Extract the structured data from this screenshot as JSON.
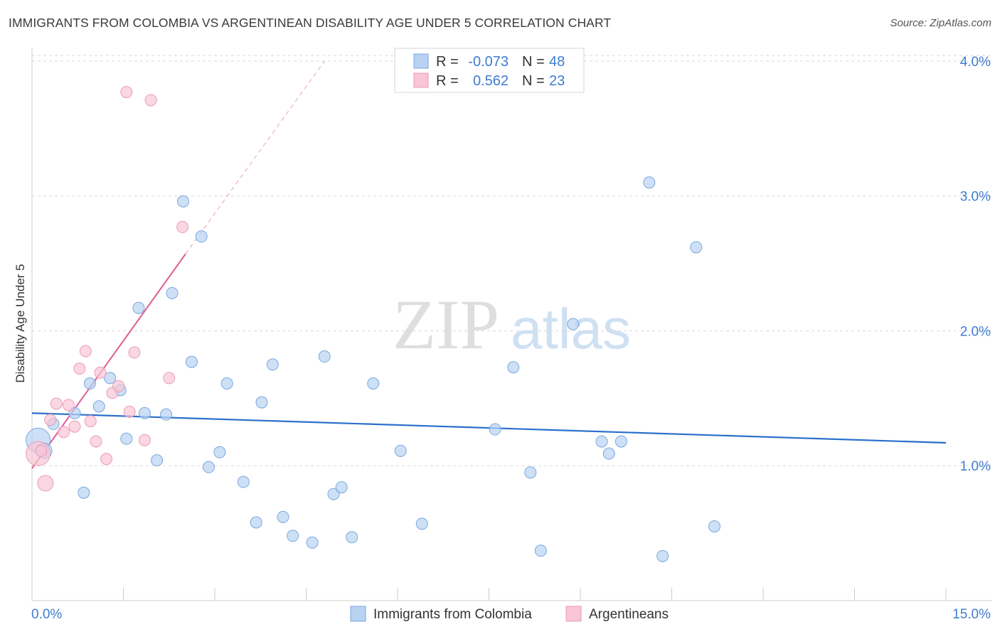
{
  "title": "IMMIGRANTS FROM COLOMBIA VS ARGENTINEAN DISABILITY AGE UNDER 5 CORRELATION CHART",
  "source": "Source: ZipAtlas.com",
  "watermark": {
    "zip": "ZIP",
    "atlas": "atlas"
  },
  "colors": {
    "blue_fill": "#b8d3f2",
    "blue_stroke": "#7aa7dd",
    "blue_line": "#2a6fcc",
    "pink_fill": "#f8c6d6",
    "pink_stroke": "#ec9bb6",
    "pink_line": "#e0689a",
    "tick_text": "#3f7bd0"
  },
  "legend": {
    "rows": [
      {
        "r_label": "R =",
        "r_value": "-0.073",
        "n_label": "N =",
        "n_value": "48"
      },
      {
        "r_label": "R =",
        "r_value": "0.562",
        "n_label": "N =",
        "n_value": "23"
      }
    ]
  },
  "bottom_legend": [
    "Immigrants from Colombia",
    "Argentineans"
  ],
  "chart_data": {
    "type": "scatter",
    "title": "IMMIGRANTS FROM COLOMBIA VS ARGENTINEAN DISABILITY AGE UNDER 5 CORRELATION CHART",
    "xlabel": "",
    "ylabel": "Disability Age Under 5",
    "xlim": [
      0,
      15
    ],
    "ylim": [
      0,
      4.1
    ],
    "x_tick_labels": [
      "0.0%",
      "15.0%"
    ],
    "y_ticks": [
      1.0,
      2.0,
      3.0,
      4.0
    ],
    "y_tick_labels": [
      "1.0%",
      "2.0%",
      "3.0%",
      "4.0%"
    ],
    "grid": true,
    "legend_position": "top-center",
    "series": [
      {
        "name": "Immigrants from Colombia",
        "r": -0.073,
        "n": 48,
        "trend": {
          "x0": 0.0,
          "y0": 1.39,
          "x1": 15.0,
          "y1": 1.17
        },
        "points": [
          {
            "x": 0.1,
            "y": 1.19,
            "s": 3
          },
          {
            "x": 0.2,
            "y": 1.11,
            "s": 2
          },
          {
            "x": 0.35,
            "y": 1.31,
            "s": 1
          },
          {
            "x": 0.7,
            "y": 1.39,
            "s": 1
          },
          {
            "x": 0.85,
            "y": 0.8,
            "s": 1
          },
          {
            "x": 0.95,
            "y": 1.61,
            "s": 1
          },
          {
            "x": 1.1,
            "y": 1.44,
            "s": 1
          },
          {
            "x": 1.28,
            "y": 1.65,
            "s": 1
          },
          {
            "x": 1.45,
            "y": 1.56,
            "s": 1
          },
          {
            "x": 1.55,
            "y": 1.2,
            "s": 1
          },
          {
            "x": 1.75,
            "y": 2.17,
            "s": 1
          },
          {
            "x": 1.85,
            "y": 1.39,
            "s": 1
          },
          {
            "x": 2.05,
            "y": 1.04,
            "s": 1
          },
          {
            "x": 2.2,
            "y": 1.38,
            "s": 1
          },
          {
            "x": 2.3,
            "y": 2.28,
            "s": 1
          },
          {
            "x": 2.48,
            "y": 2.96,
            "s": 1
          },
          {
            "x": 2.62,
            "y": 1.77,
            "s": 1
          },
          {
            "x": 2.78,
            "y": 2.7,
            "s": 1
          },
          {
            "x": 2.9,
            "y": 0.99,
            "s": 1
          },
          {
            "x": 3.08,
            "y": 1.1,
            "s": 1
          },
          {
            "x": 3.2,
            "y": 1.61,
            "s": 1
          },
          {
            "x": 3.47,
            "y": 0.88,
            "s": 1
          },
          {
            "x": 3.68,
            "y": 0.58,
            "s": 1
          },
          {
            "x": 3.77,
            "y": 1.47,
            "s": 1
          },
          {
            "x": 3.95,
            "y": 1.75,
            "s": 1
          },
          {
            "x": 4.12,
            "y": 0.62,
            "s": 1
          },
          {
            "x": 4.28,
            "y": 0.48,
            "s": 1
          },
          {
            "x": 4.6,
            "y": 0.43,
            "s": 1
          },
          {
            "x": 4.8,
            "y": 1.81,
            "s": 1
          },
          {
            "x": 4.95,
            "y": 0.79,
            "s": 1
          },
          {
            "x": 5.08,
            "y": 0.84,
            "s": 1
          },
          {
            "x": 5.25,
            "y": 0.47,
            "s": 1
          },
          {
            "x": 5.6,
            "y": 1.61,
            "s": 1
          },
          {
            "x": 6.05,
            "y": 1.11,
            "s": 1
          },
          {
            "x": 6.4,
            "y": 0.57,
            "s": 1
          },
          {
            "x": 7.6,
            "y": 1.27,
            "s": 1
          },
          {
            "x": 7.9,
            "y": 1.73,
            "s": 1
          },
          {
            "x": 8.18,
            "y": 0.95,
            "s": 1
          },
          {
            "x": 8.35,
            "y": 0.37,
            "s": 1
          },
          {
            "x": 8.88,
            "y": 2.05,
            "s": 1
          },
          {
            "x": 9.35,
            "y": 1.18,
            "s": 1
          },
          {
            "x": 9.47,
            "y": 1.09,
            "s": 1
          },
          {
            "x": 9.67,
            "y": 1.18,
            "s": 1
          },
          {
            "x": 10.13,
            "y": 3.1,
            "s": 1
          },
          {
            "x": 10.35,
            "y": 0.33,
            "s": 1
          },
          {
            "x": 10.9,
            "y": 2.62,
            "s": 1
          },
          {
            "x": 11.2,
            "y": 0.55,
            "s": 1
          }
        ]
      },
      {
        "name": "Argentineans",
        "r": 0.562,
        "n": 23,
        "trend": {
          "x0": 0.0,
          "y0": 0.98,
          "x1": 2.52,
          "y1": 2.57
        },
        "trend_ext": {
          "x0": 2.52,
          "y0": 2.57,
          "x1": 4.8,
          "y1": 4.0
        },
        "points": [
          {
            "x": 0.1,
            "y": 1.09,
            "s": 3
          },
          {
            "x": 0.22,
            "y": 0.87,
            "s": 2
          },
          {
            "x": 0.3,
            "y": 1.34,
            "s": 1
          },
          {
            "x": 0.4,
            "y": 1.46,
            "s": 1
          },
          {
            "x": 0.52,
            "y": 1.25,
            "s": 1
          },
          {
            "x": 0.6,
            "y": 1.45,
            "s": 1
          },
          {
            "x": 0.7,
            "y": 1.29,
            "s": 1
          },
          {
            "x": 0.78,
            "y": 1.72,
            "s": 1
          },
          {
            "x": 0.88,
            "y": 1.85,
            "s": 1
          },
          {
            "x": 0.96,
            "y": 1.33,
            "s": 1
          },
          {
            "x": 1.05,
            "y": 1.18,
            "s": 1
          },
          {
            "x": 1.12,
            "y": 1.69,
            "s": 1
          },
          {
            "x": 1.22,
            "y": 1.05,
            "s": 1
          },
          {
            "x": 1.32,
            "y": 1.54,
            "s": 1
          },
          {
            "x": 1.42,
            "y": 1.59,
            "s": 1
          },
          {
            "x": 1.55,
            "y": 3.77,
            "s": 1
          },
          {
            "x": 1.6,
            "y": 1.4,
            "s": 1
          },
          {
            "x": 1.68,
            "y": 1.84,
            "s": 1
          },
          {
            "x": 1.85,
            "y": 1.19,
            "s": 1
          },
          {
            "x": 1.95,
            "y": 3.71,
            "s": 1
          },
          {
            "x": 2.25,
            "y": 1.65,
            "s": 1
          },
          {
            "x": 2.47,
            "y": 2.77,
            "s": 1
          },
          {
            "x": 0.15,
            "y": 1.11,
            "s": 1
          }
        ]
      }
    ]
  }
}
